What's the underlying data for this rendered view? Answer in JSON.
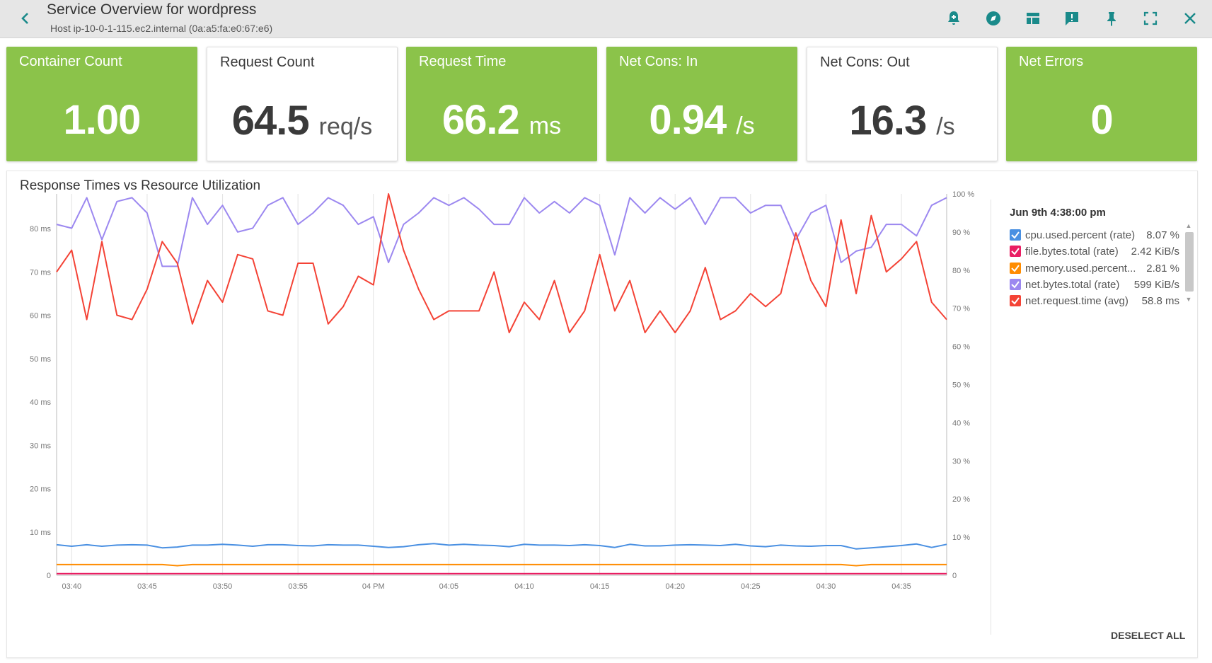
{
  "header": {
    "title": "Service Overview for wordpress",
    "subtitle": "Host ip-10-0-1-115.ec2.internal (0a:a5:fa:e0:67:e6)"
  },
  "toolbar": {
    "icons": [
      "back-icon",
      "add-alert-icon",
      "explore-icon",
      "dashboard-icon",
      "event-icon",
      "pin-icon",
      "fullscreen-icon",
      "close-icon"
    ]
  },
  "tiles": [
    {
      "label": "Container Count",
      "value": "1.00",
      "unit": "",
      "style": "green"
    },
    {
      "label": "Request Count",
      "value": "64.5",
      "unit": "req/s",
      "style": "white"
    },
    {
      "label": "Request Time",
      "value": "66.2",
      "unit": "ms",
      "style": "green"
    },
    {
      "label": "Net Cons: In",
      "value": "0.94",
      "unit": "/s",
      "style": "green"
    },
    {
      "label": "Net Cons: Out",
      "value": "16.3",
      "unit": "/s",
      "style": "white"
    },
    {
      "label": "Net Errors",
      "value": "0",
      "unit": "",
      "style": "green"
    }
  ],
  "colors": {
    "green_tile": "#8bc34a",
    "accent": "#1a8a8a"
  },
  "panel": {
    "title": "Response Times vs Resource Utilization",
    "legend_time": "Jun 9th 4:38:00 pm",
    "deselect_label": "DESELECT ALL",
    "legend": [
      {
        "name": "cpu.used.percent (rate)",
        "value": "8.07 %",
        "color": "#4a90e2"
      },
      {
        "name": "file.bytes.total (rate)",
        "value": "2.42 KiB/s",
        "color": "#e91e63"
      },
      {
        "name": "memory.used.percent...",
        "value": "2.81 %",
        "color": "#ff8c00"
      },
      {
        "name": "net.bytes.total (rate)",
        "value": "599 KiB/s",
        "color": "#9c88f0"
      },
      {
        "name": "net.request.time (avg)",
        "value": "58.8 ms",
        "color": "#f44336"
      }
    ]
  },
  "chart_data": {
    "type": "line",
    "x": [
      "03:39",
      "03:40",
      "03:41",
      "03:42",
      "03:43",
      "03:44",
      "03:45",
      "03:46",
      "03:47",
      "03:48",
      "03:49",
      "03:50",
      "03:51",
      "03:52",
      "03:53",
      "03:54",
      "03:55",
      "03:56",
      "03:57",
      "03:58",
      "03:59",
      "04:00",
      "04:01",
      "04:02",
      "04:03",
      "04:04",
      "04:05",
      "04:06",
      "04:07",
      "04:08",
      "04:09",
      "04:10",
      "04:11",
      "04:12",
      "04:13",
      "04:14",
      "04:15",
      "04:16",
      "04:17",
      "04:18",
      "04:19",
      "04:20",
      "04:21",
      "04:22",
      "04:23",
      "04:24",
      "04:25",
      "04:26",
      "04:27",
      "04:28",
      "04:29",
      "04:30",
      "04:31",
      "04:32",
      "04:33",
      "04:34",
      "04:35",
      "04:36",
      "04:37",
      "04:38"
    ],
    "x_tick_labels": [
      "03:40",
      "03:45",
      "03:50",
      "03:55",
      "04 PM",
      "04:05",
      "04:10",
      "04:15",
      "04:20",
      "04:25",
      "04:30",
      "04:35"
    ],
    "y_left": {
      "ticks": [
        "0",
        "10 ms",
        "20 ms",
        "30 ms",
        "40 ms",
        "50 ms",
        "60 ms",
        "70 ms",
        "80 ms"
      ],
      "range": [
        0,
        88
      ]
    },
    "y_right": {
      "ticks": [
        "0",
        "10 %",
        "20 %",
        "30 %",
        "40 %",
        "50 %",
        "60 %",
        "70 %",
        "80 %",
        "90 %",
        "100 %"
      ],
      "range": [
        0,
        100
      ]
    },
    "grid": "vertical",
    "legend_position": "right",
    "series": [
      {
        "name": "cpu.used.percent (rate)",
        "axis": "right",
        "color": "#4a90e2",
        "values": [
          8.0,
          7.6,
          8.0,
          7.6,
          7.9,
          8.0,
          7.9,
          7.2,
          7.4,
          7.9,
          7.9,
          8.1,
          7.9,
          7.6,
          8.0,
          8.0,
          7.8,
          7.7,
          8.0,
          7.9,
          7.9,
          7.6,
          7.3,
          7.5,
          8.0,
          8.3,
          7.9,
          8.1,
          7.9,
          7.8,
          7.5,
          8.1,
          7.9,
          7.9,
          7.8,
          8.0,
          7.8,
          7.3,
          8.1,
          7.7,
          7.7,
          7.9,
          8.0,
          7.9,
          7.8,
          8.1,
          7.7,
          7.5,
          7.9,
          7.7,
          7.6,
          7.8,
          7.8,
          6.9,
          7.2,
          7.5,
          7.8,
          8.2,
          7.3,
          8.1
        ]
      },
      {
        "name": "file.bytes.total (rate)",
        "axis": "right",
        "color": "#e91e63",
        "values": [
          0.4,
          0.4,
          0.4,
          0.4,
          0.4,
          0.4,
          0.4,
          0.4,
          0.4,
          0.4,
          0.4,
          0.4,
          0.4,
          0.4,
          0.4,
          0.4,
          0.4,
          0.4,
          0.4,
          0.4,
          0.4,
          0.4,
          0.4,
          0.4,
          0.4,
          0.4,
          0.4,
          0.4,
          0.4,
          0.4,
          0.4,
          0.4,
          0.4,
          0.4,
          0.4,
          0.4,
          0.4,
          0.4,
          0.4,
          0.4,
          0.4,
          0.4,
          0.4,
          0.4,
          0.4,
          0.4,
          0.4,
          0.4,
          0.4,
          0.4,
          0.4,
          0.4,
          0.4,
          0.4,
          0.4,
          0.4,
          0.4,
          0.4,
          0.4,
          0.4
        ]
      },
      {
        "name": "memory.used.percent...",
        "axis": "right",
        "color": "#ff8c00",
        "values": [
          2.8,
          2.8,
          2.8,
          2.8,
          2.8,
          2.8,
          2.8,
          2.8,
          2.5,
          2.8,
          2.8,
          2.8,
          2.8,
          2.8,
          2.8,
          2.8,
          2.8,
          2.8,
          2.8,
          2.8,
          2.8,
          2.8,
          2.8,
          2.8,
          2.8,
          2.8,
          2.8,
          2.8,
          2.8,
          2.8,
          2.8,
          2.8,
          2.8,
          2.8,
          2.8,
          2.8,
          2.8,
          2.8,
          2.8,
          2.8,
          2.8,
          2.8,
          2.8,
          2.8,
          2.8,
          2.8,
          2.8,
          2.8,
          2.8,
          2.8,
          2.8,
          2.8,
          2.8,
          2.5,
          2.8,
          2.8,
          2.8,
          2.8,
          2.8,
          2.8
        ]
      },
      {
        "name": "net.bytes.total (rate)",
        "axis": "right",
        "color": "#9c88f0",
        "values": [
          92,
          91,
          99,
          88,
          98,
          99,
          95,
          81,
          81,
          99,
          92,
          97,
          90,
          91,
          97,
          99,
          92,
          95,
          99,
          97,
          92,
          94,
          82,
          92,
          95,
          99,
          97,
          99,
          96,
          92,
          92,
          99,
          95,
          98,
          95,
          99,
          97,
          84,
          99,
          95,
          99,
          96,
          99,
          92,
          99,
          99,
          95,
          97,
          97,
          88,
          95,
          97,
          82,
          85,
          86,
          92,
          92,
          89,
          97,
          99
        ]
      },
      {
        "name": "net.request.time (avg)",
        "axis": "left",
        "color": "#f44336",
        "values": [
          70,
          75,
          59,
          77,
          60,
          59,
          66,
          77,
          72,
          58,
          68,
          63,
          74,
          73,
          61,
          60,
          72,
          72,
          58,
          62,
          69,
          67,
          88,
          75,
          66,
          59,
          61,
          61,
          61,
          70,
          56,
          63,
          59,
          68,
          56,
          61,
          74,
          61,
          68,
          56,
          61,
          56,
          61,
          71,
          59,
          61,
          65,
          62,
          65,
          79,
          68,
          62,
          82,
          65,
          83,
          70,
          73,
          77,
          63,
          59
        ]
      }
    ]
  }
}
